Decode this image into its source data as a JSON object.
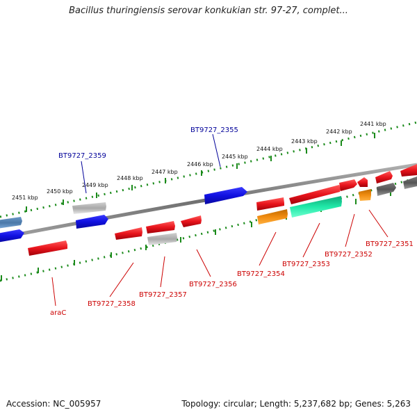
{
  "header": {
    "title": "Bacillus thuringiensis serovar konkukian str. 97-27, complet..."
  },
  "footer": {
    "accession": "Accession: NC_005957",
    "summary": "Topology: circular; Length: 5,237,682 bp; Genes: 5,263"
  },
  "scale": {
    "ticks": [
      "2441 kbp",
      "2442 kbp",
      "2443 kbp",
      "2444 kbp",
      "2445 kbp",
      "2446 kbp",
      "2447 kbp",
      "2448 kbp",
      "2449 kbp",
      "2450 kbp",
      "2451 kbp"
    ]
  },
  "genes": {
    "labels": [
      {
        "name": "BT9727_2355",
        "color": "blue"
      },
      {
        "name": "BT9727_2359",
        "color": "blue"
      },
      {
        "name": "araC",
        "color": "red"
      },
      {
        "name": "BT9727_2358",
        "color": "red"
      },
      {
        "name": "BT9727_2357",
        "color": "red"
      },
      {
        "name": "BT9727_2356",
        "color": "red"
      },
      {
        "name": "BT9727_2354",
        "color": "red"
      },
      {
        "name": "BT9727_2353",
        "color": "red"
      },
      {
        "name": "BT9727_2352",
        "color": "red"
      },
      {
        "name": "BT9727_2351",
        "color": "red"
      }
    ]
  },
  "colors": {
    "red_gene": "#e8141c",
    "blue_gene": "#1010e0",
    "gray_gene": "#a8a8a8",
    "dark_gray_gene": "#555555",
    "steel_gene": "#4a78a8",
    "orange_gene": "#f08c10",
    "teal_gene": "#20e8a8",
    "backbone": "#808080",
    "tick_green": "#1a8a1a",
    "label_red": "#cc0000",
    "label_blue": "#000099"
  }
}
